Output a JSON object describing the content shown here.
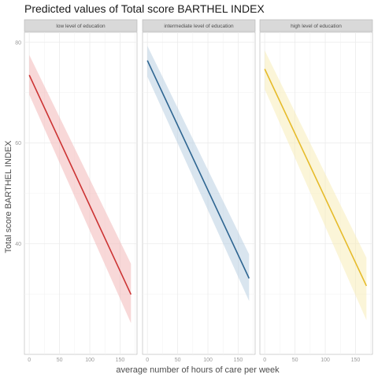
{
  "chart_data": {
    "type": "line",
    "title": "Predicted values of Total score BARTHEL INDEX",
    "xlabel": "average number of hours of care per week",
    "ylabel": "Total score BARTHEL INDEX",
    "xlim": [
      -8,
      178
    ],
    "ylim": [
      18,
      82
    ],
    "x_ticks": [
      0,
      50,
      100,
      150
    ],
    "y_ticks": [
      40,
      60,
      80
    ],
    "grid": true,
    "panels": [
      {
        "label": "low level of education",
        "color": "#cc3333",
        "band_color": "#f2b8b8",
        "line": [
          {
            "x": 0,
            "y": 73.5
          },
          {
            "x": 168,
            "y": 29.9
          }
        ],
        "ci_upper": [
          {
            "x": 0,
            "y": 77.5
          },
          {
            "x": 168,
            "y": 36.0
          }
        ],
        "ci_lower": [
          {
            "x": 0,
            "y": 69.6
          },
          {
            "x": 168,
            "y": 24.2
          }
        ]
      },
      {
        "label": "intermediate level of education",
        "color": "#2e6591",
        "band_color": "#b9d0e2",
        "line": [
          {
            "x": 0,
            "y": 76.4
          },
          {
            "x": 168,
            "y": 33.1
          }
        ],
        "ci_upper": [
          {
            "x": 0,
            "y": 79.3
          },
          {
            "x": 168,
            "y": 37.9
          }
        ],
        "ci_lower": [
          {
            "x": 0,
            "y": 73.2
          },
          {
            "x": 168,
            "y": 28.6
          }
        ]
      },
      {
        "label": "high level of education",
        "color": "#e6bb2a",
        "band_color": "#f7ecb8",
        "line": [
          {
            "x": 0,
            "y": 74.7
          },
          {
            "x": 168,
            "y": 31.6
          }
        ],
        "ci_upper": [
          {
            "x": 0,
            "y": 78.4
          },
          {
            "x": 168,
            "y": 37.2
          }
        ],
        "ci_lower": [
          {
            "x": 0,
            "y": 70.7
          },
          {
            "x": 168,
            "y": 24.8
          }
        ]
      }
    ]
  }
}
